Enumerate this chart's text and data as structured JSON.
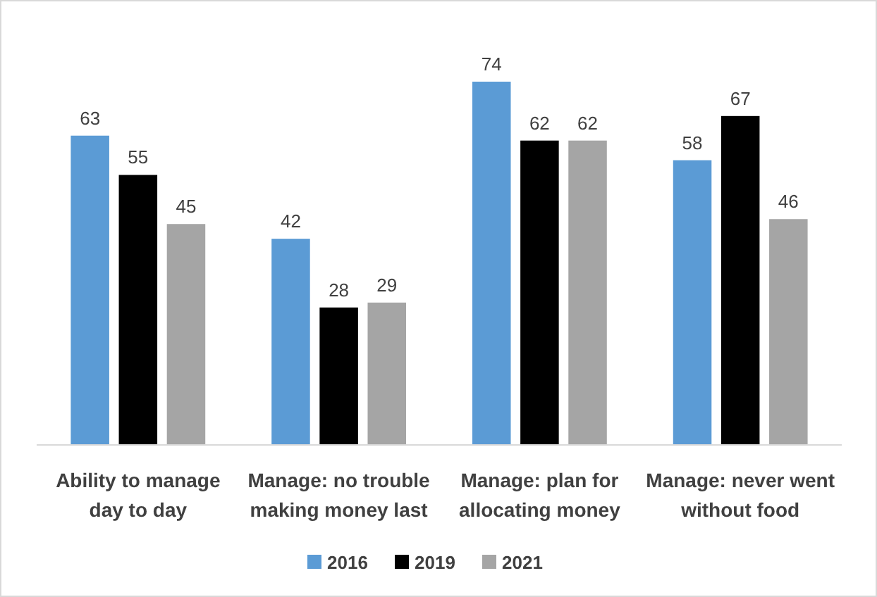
{
  "chart_data": {
    "type": "bar",
    "categories": [
      "Ability to manage day to day",
      "Manage: no trouble making money last",
      "Manage: plan for allocating money",
      "Manage: never went without food"
    ],
    "series": [
      {
        "name": "2016",
        "color": "#5b9bd5",
        "values": [
          63,
          42,
          74,
          58
        ]
      },
      {
        "name": "2019",
        "color": "#000000",
        "values": [
          55,
          28,
          62,
          67
        ]
      },
      {
        "name": "2021",
        "color": "#a5a5a5",
        "values": [
          45,
          29,
          62,
          46
        ]
      }
    ],
    "data_labels": true,
    "legend": "bottom"
  }
}
